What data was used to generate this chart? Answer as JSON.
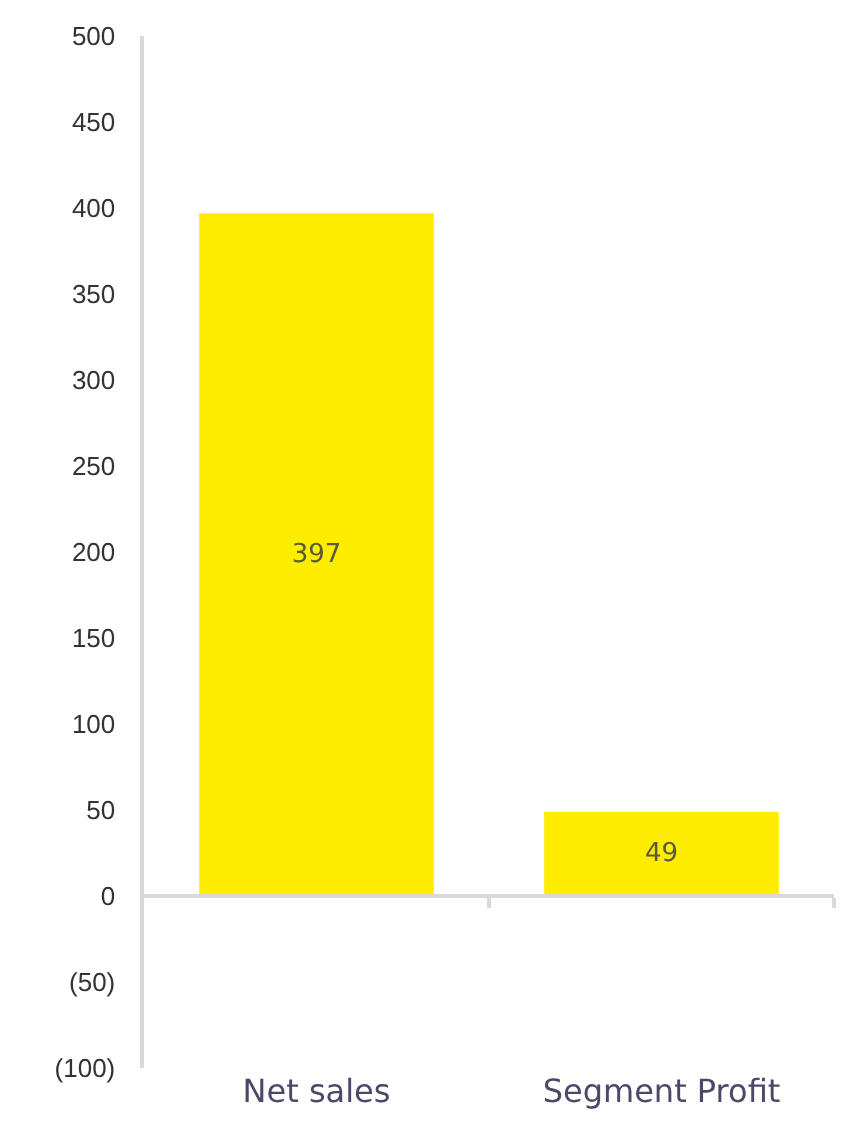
{
  "chart_data": {
    "type": "bar",
    "categories": [
      "Net sales",
      "Segment Profit"
    ],
    "values": [
      397,
      49
    ],
    "color": "#ffed00",
    "ylim": [
      -100,
      500
    ],
    "yticks": [
      {
        "value": -100,
        "label": "(100)"
      },
      {
        "value": -50,
        "label": "(50)"
      },
      0,
      50,
      100,
      150,
      200,
      250,
      300,
      350,
      400,
      450,
      500
    ],
    "data_labels": true
  }
}
